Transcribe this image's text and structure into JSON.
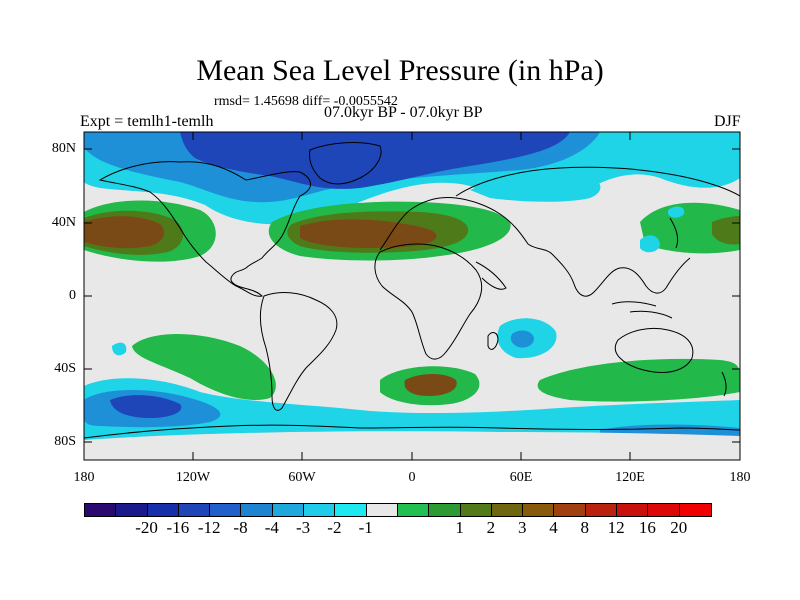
{
  "figure": {
    "title": "Mean Sea Level Pressure (in hPa)",
    "stats": "rmsd= 1.45698 diff= -0.0055542",
    "period": "07.0kyr BP - 07.0kyr BP",
    "experiment": "Expt = temlh1-temlh",
    "season": "DJF"
  },
  "axes": {
    "lat_labels": [
      "80N",
      "40N",
      "0",
      "40S",
      "80S"
    ],
    "lon_labels": [
      "180",
      "120W",
      "60W",
      "0",
      "60E",
      "120E",
      "180"
    ]
  },
  "colorbar": {
    "colors": [
      "#2a0a6e",
      "#1a1a8c",
      "#1530a8",
      "#1e46b8",
      "#2060c8",
      "#1e84d2",
      "#20a8dc",
      "#20ccea",
      "#1ee8f0",
      "#e8e8e8",
      "#22c050",
      "#2e9a34",
      "#527a18",
      "#6e6610",
      "#885a0e",
      "#a04012",
      "#b8220e",
      "#c8100c",
      "#dc0808",
      "#f00000"
    ],
    "labels": [
      "-20",
      "-16",
      "-12",
      "-8",
      "-4",
      "-3",
      "-2",
      "-1",
      "1",
      "2",
      "3",
      "4",
      "8",
      "12",
      "16",
      "20"
    ]
  },
  "map_colors": {
    "background": "#e8e8e8",
    "light_blue": "#1ed4e6",
    "mid_blue": "#1e90d8",
    "dark_blue": "#1e46b8",
    "green": "#22b84a",
    "olive": "#4e7a1a",
    "brown": "#7a4a16",
    "coast": "#000000"
  }
}
